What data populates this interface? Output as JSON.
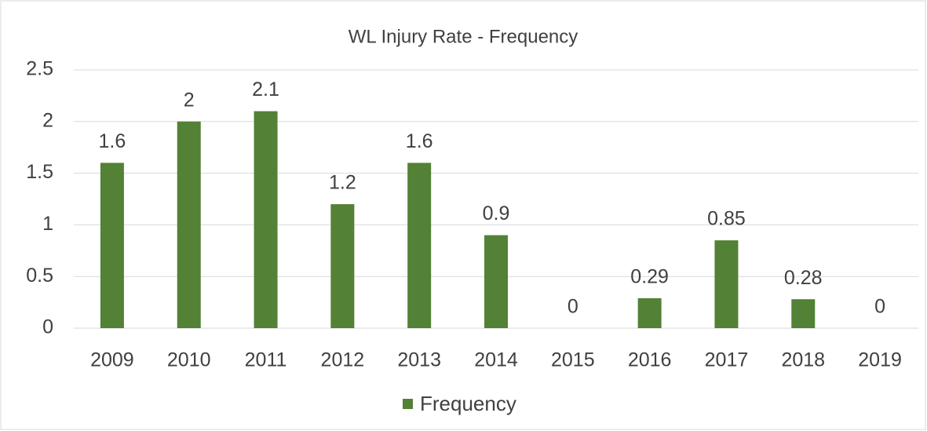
{
  "chart_data": {
    "type": "bar",
    "title": "WL Injury Rate - Frequency",
    "categories": [
      "2009",
      "2010",
      "2011",
      "2012",
      "2013",
      "2014",
      "2015",
      "2016",
      "2017",
      "2018",
      "2019"
    ],
    "series": [
      {
        "name": "Frequency",
        "color": "#538135",
        "values": [
          1.6,
          2,
          2.1,
          1.2,
          1.6,
          0.9,
          0,
          0.29,
          0.85,
          0.28,
          0
        ]
      }
    ],
    "ylim": [
      0,
      2.5
    ],
    "yticks": [
      0,
      0.5,
      1,
      1.5,
      2,
      2.5
    ],
    "grid": true,
    "legend": "bottom"
  }
}
